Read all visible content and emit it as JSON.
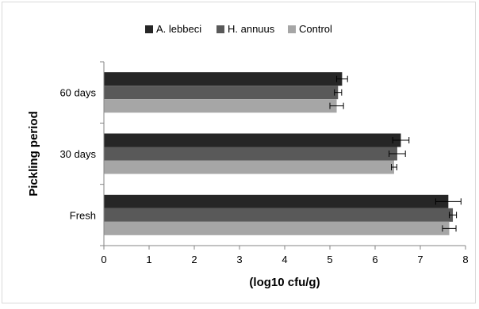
{
  "chart_data": {
    "type": "bar",
    "orientation": "horizontal",
    "categories": [
      "60 days",
      "30 days",
      "Fresh"
    ],
    "series": [
      {
        "name": "A. lebbeci",
        "color": "#262626",
        "values": [
          5.27,
          6.57,
          7.62
        ],
        "errors": [
          0.12,
          0.18,
          0.28
        ]
      },
      {
        "name": "H. annuus",
        "color": "#595959",
        "values": [
          5.18,
          6.49,
          7.72
        ],
        "errors": [
          0.08,
          0.18,
          0.08
        ]
      },
      {
        "name": "Control",
        "color": "#a6a6a6",
        "values": [
          5.15,
          6.42,
          7.64
        ],
        "errors": [
          0.15,
          0.06,
          0.15
        ]
      }
    ],
    "title": "",
    "xlabel": "(log10 cfu/g)",
    "ylabel": "Pickling period",
    "xlim": [
      0,
      8
    ],
    "xticks": [
      "0",
      "1",
      "2",
      "3",
      "4",
      "5",
      "6",
      "7",
      "8"
    ],
    "grid": false,
    "legend_position": "top"
  }
}
